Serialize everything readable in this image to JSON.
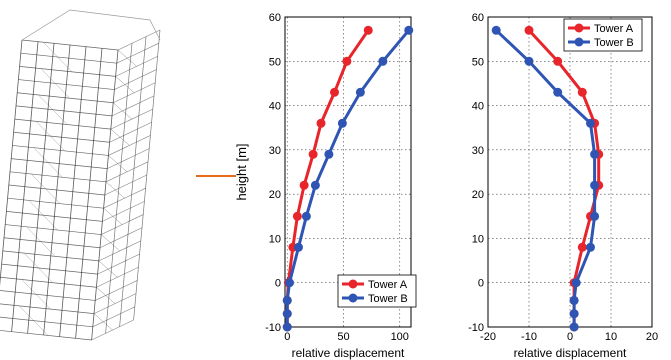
{
  "colors": {
    "tower_a": "#e8252b",
    "tower_b": "#2f55b4",
    "accent_line": "#e86a1a",
    "frame_stroke": "#333333"
  },
  "figure": {
    "left_image": "3d-building-frame-model",
    "separator": "orange-line"
  },
  "chart_data": [
    {
      "type": "line",
      "ylabel": "height [m]",
      "xlabel": "relative displacement",
      "xlim": [
        -2,
        110
      ],
      "ylim": [
        -10,
        60
      ],
      "xticks": [
        0,
        50,
        100
      ],
      "yticks": [
        -10,
        0,
        10,
        20,
        30,
        40,
        50,
        60
      ],
      "grid": true,
      "legend": "bottom-right",
      "series": [
        {
          "name": "Tower A",
          "color": "#e8252b",
          "x": [
            0,
            0,
            0,
            1,
            5,
            9,
            15,
            23,
            30,
            42,
            53,
            72
          ],
          "y": [
            -10,
            -7,
            -4,
            0,
            8,
            15,
            22,
            29,
            36,
            43,
            50,
            57
          ]
        },
        {
          "name": "Tower B",
          "color": "#2f55b4",
          "x": [
            0,
            0,
            0,
            2,
            10,
            17,
            25,
            37,
            49,
            65,
            85,
            108
          ],
          "y": [
            -10,
            -7,
            -4,
            0,
            8,
            15,
            22,
            29,
            36,
            43,
            50,
            57
          ]
        }
      ]
    },
    {
      "type": "line",
      "xlabel": "relative displacement",
      "xlim": [
        -20,
        20
      ],
      "ylim": [
        -10,
        60
      ],
      "xticks": [
        -20,
        -10,
        0,
        10,
        20
      ],
      "yticks": [
        -10,
        0,
        10,
        20,
        30,
        40,
        50,
        60
      ],
      "grid": true,
      "legend": "top-right",
      "series": [
        {
          "name": "Tower A",
          "color": "#e8252b",
          "x": [
            1,
            1,
            1,
            1,
            3,
            5,
            7,
            7,
            6,
            3,
            -3,
            -10
          ],
          "y": [
            -10,
            -7,
            -4,
            0,
            8,
            15,
            22,
            29,
            36,
            43,
            50,
            57
          ]
        },
        {
          "name": "Tower B",
          "color": "#2f55b4",
          "x": [
            1,
            1,
            1,
            1.5,
            5,
            6,
            6,
            6,
            5,
            -3,
            -10,
            -18
          ],
          "y": [
            -10,
            -7,
            -4,
            0,
            8,
            15,
            22,
            29,
            36,
            43,
            50,
            57
          ]
        }
      ]
    }
  ]
}
